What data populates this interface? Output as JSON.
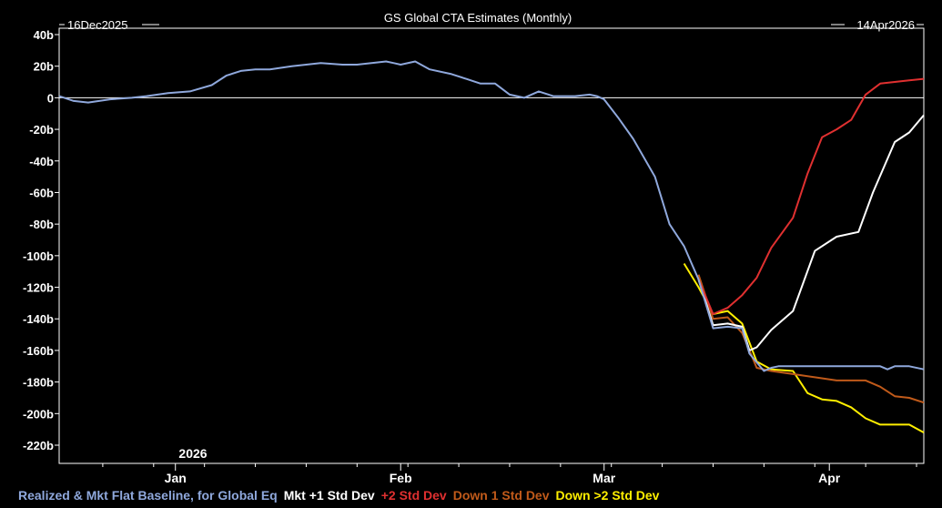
{
  "chart_data": {
    "type": "line",
    "title": "GS Global CTA Estimates (Monthly)",
    "range_start_label": "16Dec2025",
    "range_end_label": "14Apr2026",
    "year_label": "2026",
    "x_tick_labels": [
      "Jan",
      "Feb",
      "Mar",
      "Apr"
    ],
    "x_tick_dates": [
      "2026-01-01",
      "2026-02-01",
      "2026-03-01",
      "2026-04-01"
    ],
    "y_ticks": [
      40,
      20,
      0,
      -20,
      -40,
      -60,
      -80,
      -100,
      -120,
      -140,
      -160,
      -180,
      -200,
      -220
    ],
    "y_tick_labels": [
      "40b",
      "20b",
      "0",
      "-20b",
      "-40b",
      "-60b",
      "-80b",
      "-100b",
      "-120b",
      "-140b",
      "-160b",
      "-180b",
      "-200b",
      "-220b"
    ],
    "ylim": [
      -230,
      40
    ],
    "xlim": [
      "2025-12-16",
      "2026-04-14"
    ],
    "zero_line": true,
    "legend_position": "bottom",
    "series": [
      {
        "name": "Realized & Mkt Flat Baseline, for Global Eq",
        "color": "#8fa8dc",
        "x": [
          "2025-12-16",
          "2025-12-18",
          "2025-12-20",
          "2025-12-23",
          "2025-12-26",
          "2025-12-28",
          "2025-12-31",
          "2026-01-03",
          "2026-01-06",
          "2026-01-08",
          "2026-01-10",
          "2026-01-12",
          "2026-01-14",
          "2026-01-17",
          "2026-01-19",
          "2026-01-21",
          "2026-01-24",
          "2026-01-26",
          "2026-01-28",
          "2026-01-30",
          "2026-01-31",
          "2026-02-01",
          "2026-02-03",
          "2026-02-05",
          "2026-02-08",
          "2026-02-10",
          "2026-02-12",
          "2026-02-14",
          "2026-02-16",
          "2026-02-18",
          "2026-02-20",
          "2026-02-22",
          "2026-02-25",
          "2026-02-27",
          "2026-02-28",
          "2026-03-01",
          "2026-03-03",
          "2026-03-05",
          "2026-03-08",
          "2026-03-10",
          "2026-03-12",
          "2026-03-14",
          "2026-03-16",
          "2026-03-18",
          "2026-03-20",
          "2026-03-21",
          "2026-03-23",
          "2026-03-24",
          "2026-03-25",
          "2026-03-26",
          "2026-03-27",
          "2026-03-29",
          "2026-03-31",
          "2026-04-02",
          "2026-04-04",
          "2026-04-06",
          "2026-04-08",
          "2026-04-09",
          "2026-04-10",
          "2026-04-12",
          "2026-04-14"
        ],
        "values": [
          1,
          -2,
          -3,
          -1,
          0,
          1,
          3,
          4,
          8,
          14,
          17,
          18,
          18,
          20,
          21,
          22,
          21,
          21,
          22,
          23,
          22,
          21,
          23,
          18,
          15,
          12,
          9,
          9,
          2,
          0,
          4,
          1,
          1,
          2,
          1,
          -1,
          -13,
          -26,
          -50,
          -80,
          -94,
          -115,
          -146,
          -145,
          -146,
          -162,
          -173,
          -171,
          -170,
          -170,
          -170,
          -170,
          -170,
          -170,
          -170,
          -170,
          -170,
          -172,
          -170,
          -170,
          -172
        ],
        "show_in_legend": true
      },
      {
        "name": "Mkt +1 Std Dev",
        "color": "#ffffff",
        "x": [
          "2026-03-14",
          "2026-03-16",
          "2026-03-18",
          "2026-03-20",
          "2026-03-21",
          "2026-03-22",
          "2026-03-24",
          "2026-03-27",
          "2026-03-30",
          "2026-04-02",
          "2026-04-05",
          "2026-04-07",
          "2026-04-10",
          "2026-04-12",
          "2026-04-14"
        ],
        "values": [
          -115,
          -144,
          -143,
          -145,
          -160,
          -158,
          -147,
          -135,
          -97,
          -88,
          -85,
          -60,
          -28,
          -22,
          -11
        ],
        "show_in_legend": true
      },
      {
        "name": "+2 Std Dev",
        "color": "#e03030",
        "x": [
          "2026-03-14",
          "2026-03-16",
          "2026-03-18",
          "2026-03-20",
          "2026-03-22",
          "2026-03-24",
          "2026-03-27",
          "2026-03-29",
          "2026-03-31",
          "2026-04-02",
          "2026-04-04",
          "2026-04-06",
          "2026-04-08",
          "2026-04-10",
          "2026-04-12",
          "2026-04-14"
        ],
        "values": [
          -115,
          -137,
          -133,
          -125,
          -114,
          -95,
          -76,
          -48,
          -25,
          -20,
          -14,
          2,
          9,
          10,
          11,
          12
        ],
        "show_in_legend": true
      },
      {
        "name": "Down 1 Std Dev",
        "color": "#c05a1a",
        "x": [
          "2026-03-14",
          "2026-03-16",
          "2026-03-18",
          "2026-03-20",
          "2026-03-22",
          "2026-03-24",
          "2026-03-27",
          "2026-03-30",
          "2026-04-02",
          "2026-04-04",
          "2026-04-06",
          "2026-04-08",
          "2026-04-10",
          "2026-04-12",
          "2026-04-14"
        ],
        "values": [
          -112,
          -140,
          -139,
          -149,
          -171,
          -173,
          -175,
          -177,
          -179,
          -179,
          -179,
          -183,
          -189,
          -190,
          -193
        ],
        "show_in_legend": true
      },
      {
        "name": "Down >2 Std Dev",
        "color": "#ffef00",
        "x": [
          "2026-03-12",
          "2026-03-14",
          "2026-03-16",
          "2026-03-18",
          "2026-03-20",
          "2026-03-22",
          "2026-03-24",
          "2026-03-27",
          "2026-03-29",
          "2026-03-31",
          "2026-04-02",
          "2026-04-04",
          "2026-04-06",
          "2026-04-08",
          "2026-04-10",
          "2026-04-12",
          "2026-04-14"
        ],
        "values": [
          -105,
          -120,
          -137,
          -135,
          -143,
          -167,
          -172,
          -173,
          -187,
          -191,
          -192,
          -196,
          -203,
          -207,
          -207,
          -207,
          -212
        ],
        "show_in_legend": true
      }
    ]
  }
}
